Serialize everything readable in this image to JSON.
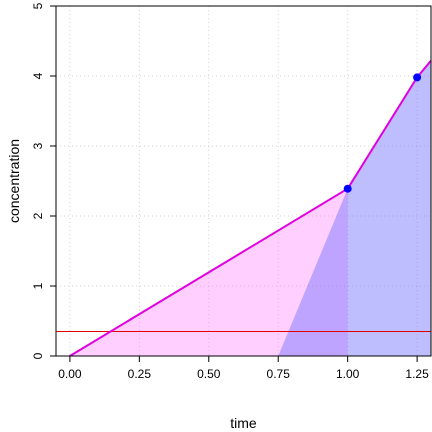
{
  "chart_data": {
    "type": "line",
    "title": "",
    "xlabel": "time",
    "ylabel": "concentration",
    "xlim": [
      -0.05,
      1.3
    ],
    "ylim": [
      0,
      5
    ],
    "grid": true,
    "x_ticks": [
      0,
      0.25,
      0.5,
      0.75,
      1,
      1.25
    ],
    "x_tick_labels": [
      "0.00",
      "0.25",
      "0.50",
      "0.75",
      "1.00",
      "1.25"
    ],
    "y_ticks": [
      0,
      1,
      2,
      3,
      4,
      5
    ],
    "y_tick_labels": [
      "0",
      "1",
      "2",
      "3",
      "4",
      "5"
    ],
    "threshold": {
      "y": 0.35,
      "color": "#e00000"
    },
    "series": [
      {
        "color": "#e000e0",
        "x": [
          0,
          1.0,
          1.25,
          1.3
        ],
        "y": [
          0,
          2.39,
          3.98,
          4.22
        ]
      }
    ],
    "markers": {
      "color": "#0000ff",
      "points": [
        {
          "x": 1.0,
          "y": 2.39
        },
        {
          "x": 1.25,
          "y": 3.98
        }
      ]
    },
    "regions": [
      {
        "fill": "rgba(255,120,255,0.35)",
        "x": [
          0,
          1.0,
          1.0
        ],
        "y": [
          0,
          2.39,
          0
        ]
      },
      {
        "fill": "rgba(110,110,255,0.45)",
        "x": [
          0.75,
          1.0,
          1.25,
          1.3,
          1.3
        ],
        "y": [
          0,
          2.39,
          3.98,
          4.22,
          0
        ]
      }
    ]
  }
}
